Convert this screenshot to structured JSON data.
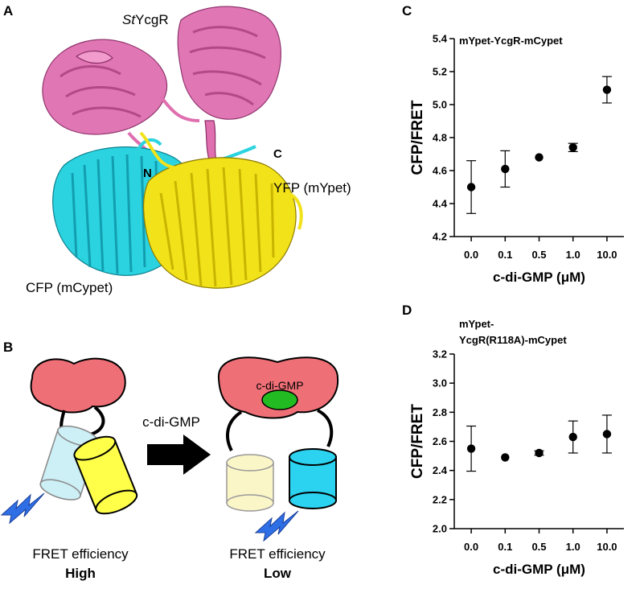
{
  "panels": {
    "a": {
      "letter": "A",
      "labels": {
        "ycgr_prefix": "St",
        "ycgr_suffix": "YcgR",
        "yfp": "YFP (mYpet)",
        "cfp": "CFP (mCypet)",
        "n_term": "N",
        "c_term": "C"
      }
    },
    "b": {
      "letter": "B",
      "ligand_label": "c-di-GMP",
      "ligand_bubble": "c-di-GMP",
      "left_caption": "FRET efficiency",
      "left_level": "High",
      "right_caption": "FRET efficiency",
      "right_level": "Low"
    },
    "c": {
      "letter": "C"
    },
    "d": {
      "letter": "D"
    }
  },
  "colors": {
    "ycgr": "#e06fb0",
    "cfp": "#2bd3e0",
    "yfp": "#f2e21a",
    "cartoon_ycgr": "#ef6f77",
    "cartoon_ligand": "#22bb22",
    "cartoon_cfp_on": "#2bd3f0",
    "cartoon_cfp_off": "#cdeff6",
    "cartoon_yfp_on": "#ffff4a",
    "cartoon_yfp_off": "#fbf6c8",
    "flash": "#2f6fe6"
  },
  "chart_data": [
    {
      "type": "scatter",
      "title": "mYpet-YcgR-mCypet",
      "xlabel": "c-di-GMP (μM)",
      "ylabel": "CFP/FRET",
      "categories": [
        "0.0",
        "0.1",
        "0.5",
        "1.0",
        "10.0"
      ],
      "values": [
        4.5,
        4.61,
        4.68,
        4.74,
        5.09
      ],
      "errors": [
        0.16,
        0.11,
        0.0,
        0.025,
        0.08
      ],
      "ylim": [
        4.2,
        5.4
      ],
      "yticks": [
        "4.2",
        "4.4",
        "4.6",
        "4.8",
        "5.0",
        "5.2",
        "5.4"
      ]
    },
    {
      "type": "scatter",
      "title": "mYpet-\nYcgR(R118A)-mCypet",
      "title_lines": [
        "mYpet-",
        "YcgR(R118A)-mCypet"
      ],
      "xlabel": "c-di-GMP (μM)",
      "ylabel": "CFP/FRET",
      "categories": [
        "0.0",
        "0.1",
        "0.5",
        "1.0",
        "10.0"
      ],
      "values": [
        2.55,
        2.49,
        2.52,
        2.63,
        2.65
      ],
      "errors": [
        0.155,
        0.0,
        0.015,
        0.11,
        0.13
      ],
      "ylim": [
        2.0,
        3.2
      ],
      "yticks": [
        "2.0",
        "2.2",
        "2.4",
        "2.6",
        "2.8",
        "3.0",
        "3.2"
      ]
    }
  ]
}
